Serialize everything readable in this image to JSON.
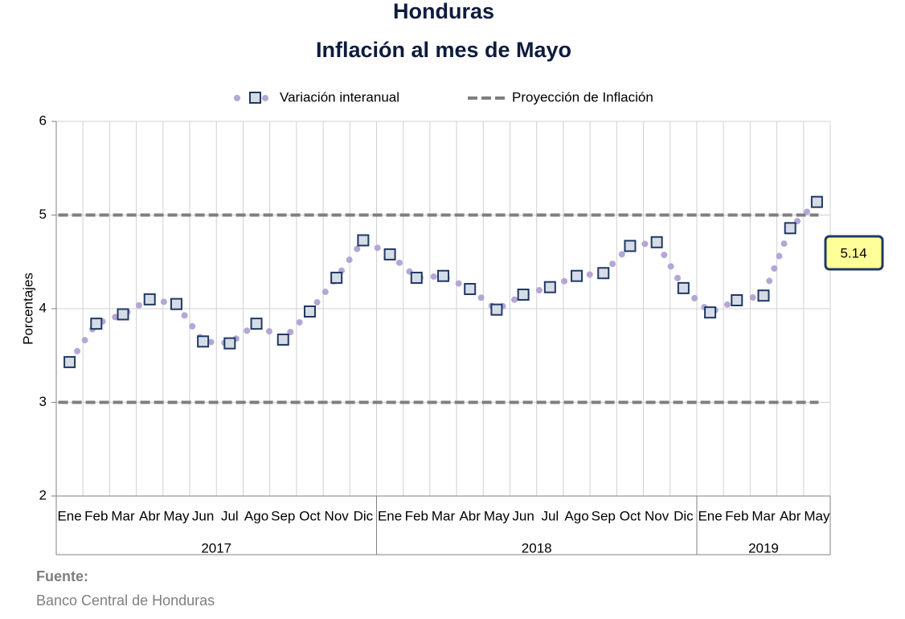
{
  "chart_data": {
    "type": "line",
    "title": "Honduras",
    "subtitle": "Inflación al mes de Mayo",
    "y_label": "Porcentajes",
    "categories": [
      "Ene",
      "Feb",
      "Mar",
      "Abr",
      "May",
      "Jun",
      "Jul",
      "Ago",
      "Sep",
      "Oct",
      "Nov",
      "Dic",
      "Ene",
      "Feb",
      "Mar",
      "Abr",
      "May",
      "Jun",
      "Jul",
      "Ago",
      "Sep",
      "Oct",
      "Nov",
      "Dic",
      "Ene",
      "Feb",
      "Mar",
      "Abr",
      "May"
    ],
    "groups": [
      "2017",
      "2018",
      "2019"
    ],
    "series": [
      {
        "name": "Variación interanual",
        "color": "#b4a7d6",
        "marker_fill": "#d6dce5",
        "marker_stroke": "#1f3864",
        "values": [
          3.43,
          3.84,
          3.94,
          4.1,
          4.05,
          3.65,
          3.63,
          3.84,
          3.67,
          3.97,
          4.33,
          4.73,
          4.58,
          4.33,
          4.35,
          4.21,
          3.99,
          4.15,
          4.23,
          4.35,
          4.38,
          4.67,
          4.71,
          4.22,
          3.96,
          4.09,
          4.14,
          4.86,
          5.14
        ]
      }
    ],
    "projection": {
      "name": "Proyección de Inflación",
      "color": "#7f7f7f",
      "values": [
        5,
        3
      ]
    },
    "annotation": "5.14",
    "ylim": [
      2,
      6
    ],
    "yticks": [
      2,
      3,
      4,
      5,
      6
    ],
    "grid": true,
    "source_label": "Fuente:",
    "source": "Banco Central de Honduras"
  }
}
